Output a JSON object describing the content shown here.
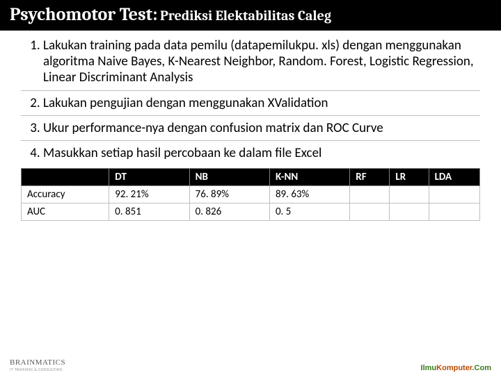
{
  "title": {
    "main_prefix": "Psychomotor Test:",
    "subtitle": " Prediksi Elektabilitas Caleg"
  },
  "steps": [
    "Lakukan training pada data pemilu (datapemilukpu. xls) dengan menggunakan algoritma Naive Bayes, K-Nearest Neighbor, Random. Forest, Logistic Regression, Linear Discriminant Analysis",
    "Lakukan pengujian dengan  menggunakan XValidation",
    "Ukur performance-nya dengan confusion matrix dan ROC Curve",
    "Masukkan setiap hasil percobaan ke dalam file Excel"
  ],
  "table": {
    "columns": [
      "",
      "DT",
      "NB",
      "K-NN",
      "RF",
      "LR",
      "LDA"
    ],
    "rows": [
      {
        "label": "Accuracy",
        "cells": [
          "92. 21%",
          "76. 89%",
          "89. 63%",
          "",
          "",
          ""
        ]
      },
      {
        "label": "AUC",
        "cells": [
          "0. 851",
          "0. 826",
          "0. 5",
          "",
          "",
          ""
        ]
      }
    ],
    "header_bg": "#000000",
    "header_fg": "#ffffff",
    "cell_border": "#bfbfbf",
    "fontsize": 15
  },
  "footer": {
    "left_brand": "BRAINMATICS",
    "left_sub": "IT TRAINING & CONSULTING",
    "right_ilmu": "Ilmu",
    "right_komputer": "Komputer",
    "right_com": ".Com"
  },
  "colors": {
    "title_bg": "#000000",
    "title_fg": "#ffffff",
    "body_bg": "#ffffff",
    "text": "#000000",
    "divider": "#bfbfbf"
  }
}
